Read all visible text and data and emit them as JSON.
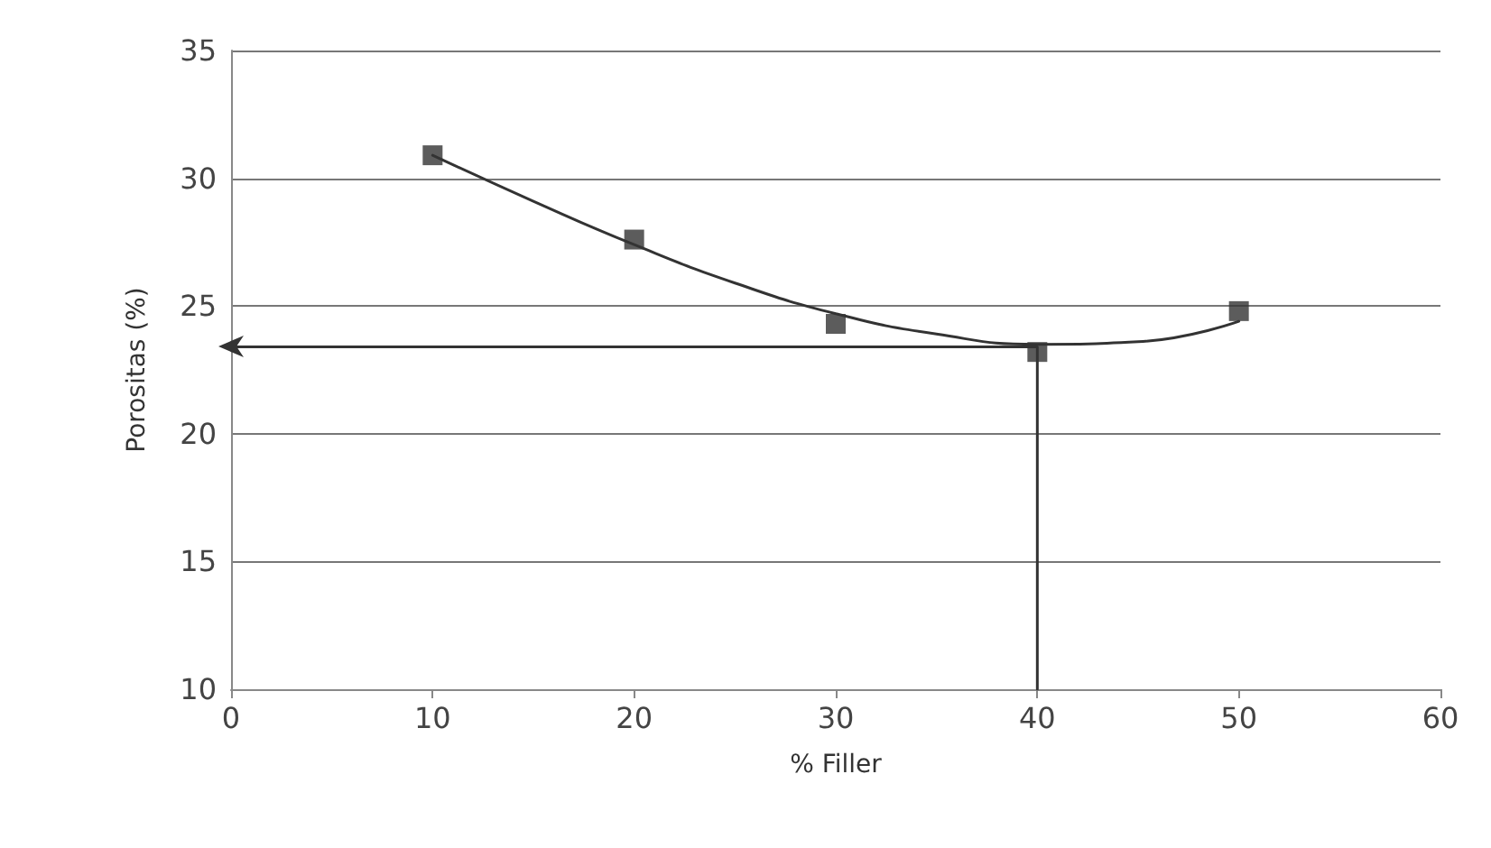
{
  "chart_data": {
    "type": "scatter",
    "xlabel": "% Filler",
    "ylabel": "Porositas (%)",
    "x": [
      10,
      20,
      30,
      40,
      50
    ],
    "xlim": [
      0,
      60
    ],
    "xticks": [
      0,
      10,
      20,
      30,
      40,
      50,
      60
    ],
    "ylim": [
      10,
      35
    ],
    "yticks": [
      10,
      15,
      20,
      25,
      30,
      35
    ],
    "grid": "y",
    "marker": "square",
    "series": [
      {
        "color": "#333333",
        "values": [
          30.9,
          27.6,
          24.3,
          23.2,
          24.8
        ]
      },
      {
        "type": "line",
        "color": "#333333",
        "marker": "none",
        "x": [
          10,
          15,
          20,
          25,
          30,
          35,
          40,
          45,
          50
        ],
        "values": [
          30.9,
          29.1,
          27.4,
          25.9,
          24.7,
          23.9,
          23.5,
          23.6,
          24.4
        ]
      },
      {
        "type": "line",
        "color": "#333333",
        "marker": "none",
        "x": [
          40,
          40,
          0
        ],
        "values": [
          10,
          23.4,
          23.4
        ]
      }
    ]
  }
}
